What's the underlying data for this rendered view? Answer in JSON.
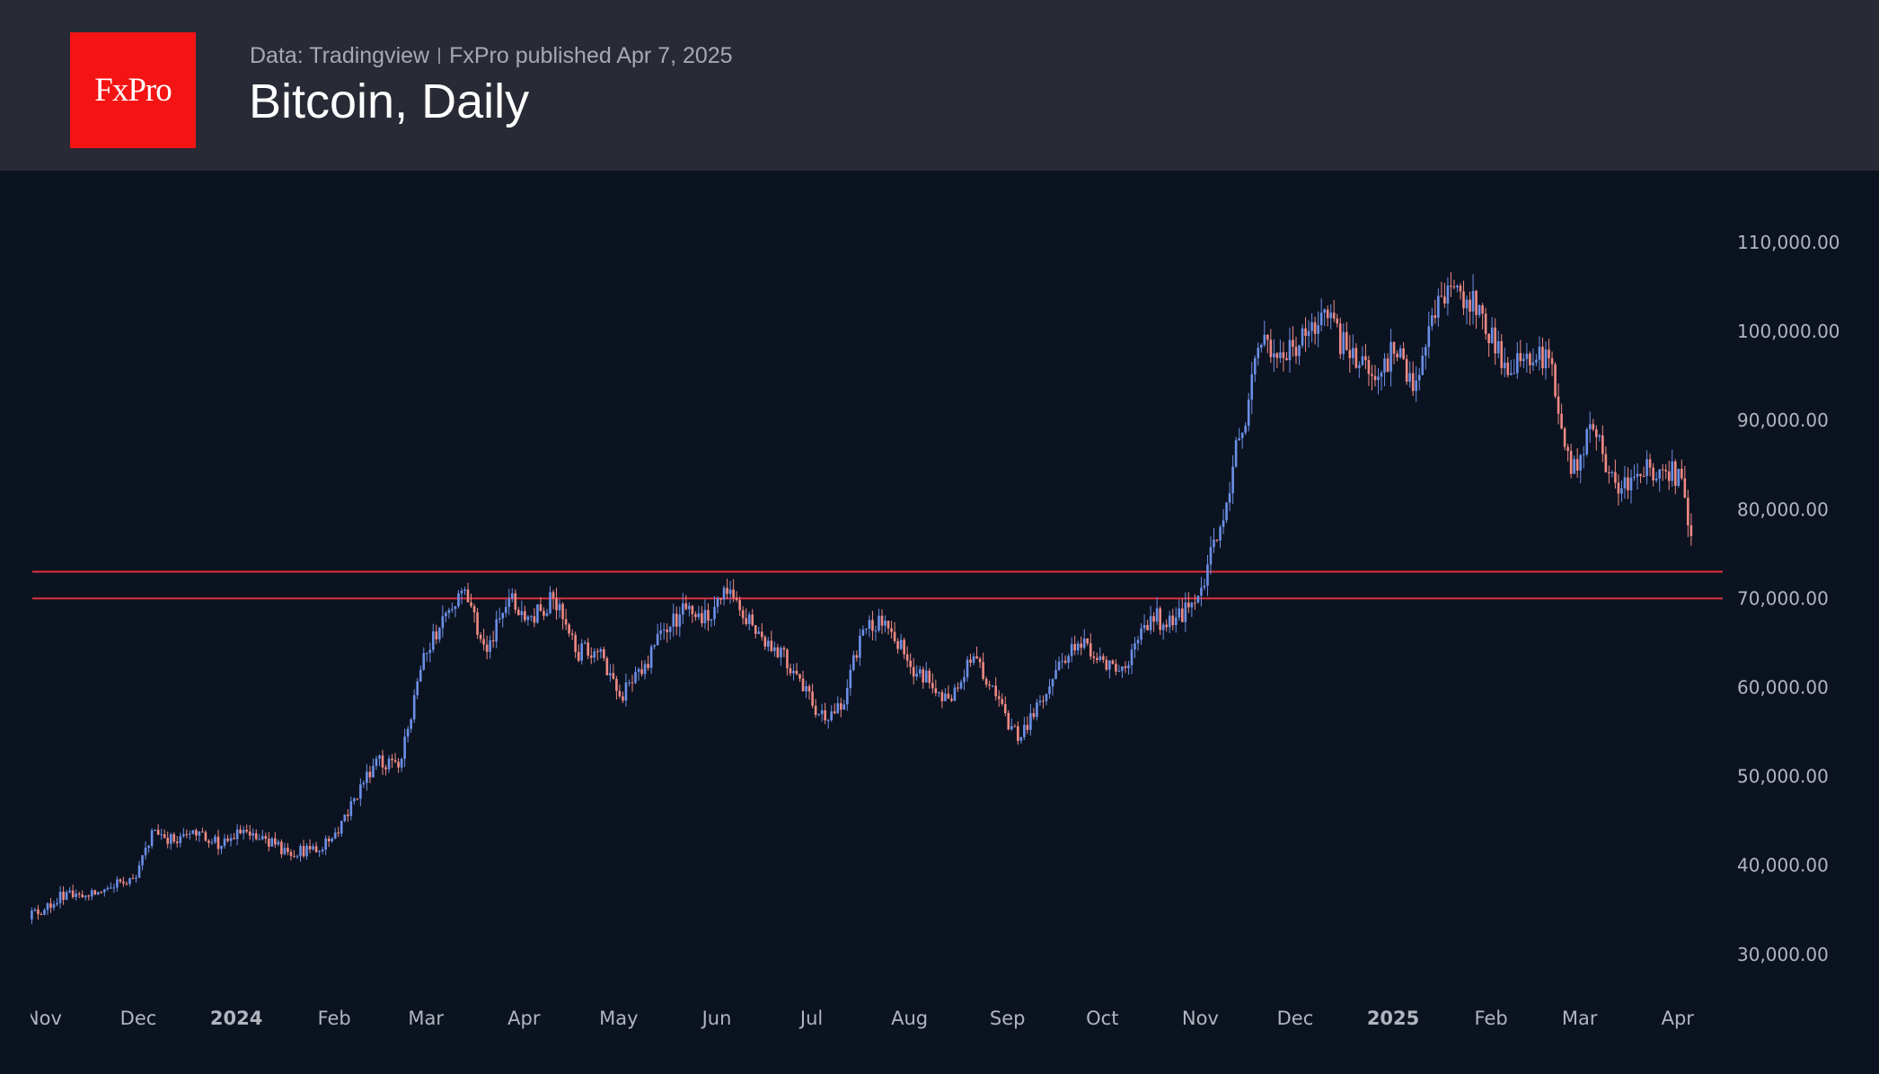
{
  "header": {
    "logo_text": "FxPro",
    "source": "Data: Tradingview",
    "published": "FxPro published Apr 7, 2025",
    "title": "Bitcoin, Daily"
  },
  "chart_data": {
    "type": "candlestick",
    "title": "Bitcoin, Daily",
    "ylabel": "",
    "xlabel": "",
    "ylim": [
      26000,
      116000
    ],
    "y_ticks": [
      "110,000.00",
      "100,000.00",
      "90,000.00",
      "80,000.00",
      "70,000.00",
      "60,000.00",
      "50,000.00",
      "40,000.00",
      "30,000.00"
    ],
    "y_tick_values": [
      110000,
      100000,
      90000,
      80000,
      70000,
      60000,
      50000,
      40000,
      30000
    ],
    "x_ticks": [
      {
        "label": "Nov",
        "date": "2023-11-01",
        "bold": false
      },
      {
        "label": "Dec",
        "date": "2023-12-01",
        "bold": false
      },
      {
        "label": "2024",
        "date": "2024-01-01",
        "bold": true
      },
      {
        "label": "Feb",
        "date": "2024-02-01",
        "bold": false
      },
      {
        "label": "Mar",
        "date": "2024-03-01",
        "bold": false
      },
      {
        "label": "Apr",
        "date": "2024-04-01",
        "bold": false
      },
      {
        "label": "May",
        "date": "2024-05-01",
        "bold": false
      },
      {
        "label": "Jun",
        "date": "2024-06-01",
        "bold": false
      },
      {
        "label": "Jul",
        "date": "2024-07-01",
        "bold": false
      },
      {
        "label": "Aug",
        "date": "2024-08-01",
        "bold": false
      },
      {
        "label": "Sep",
        "date": "2024-09-01",
        "bold": false
      },
      {
        "label": "Oct",
        "date": "2024-10-01",
        "bold": false
      },
      {
        "label": "Nov",
        "date": "2024-11-01",
        "bold": false
      },
      {
        "label": "Dec",
        "date": "2024-12-01",
        "bold": false
      },
      {
        "label": "2025",
        "date": "2025-01-01",
        "bold": true
      },
      {
        "label": "Feb",
        "date": "2025-02-01",
        "bold": false
      },
      {
        "label": "Mar",
        "date": "2025-03-01",
        "bold": false
      },
      {
        "label": "Apr",
        "date": "2025-04-01",
        "bold": false
      }
    ],
    "horizontal_levels": [
      73000,
      70000
    ],
    "colors": {
      "up": "#6b8fe6",
      "down": "#f08a84",
      "level": "#e0303c",
      "background": "#0c1320"
    },
    "approx_weekly_closes": [
      [
        "2023-10-27",
        34300
      ],
      [
        "2023-11-03",
        35000
      ],
      [
        "2023-11-10",
        37000
      ],
      [
        "2023-11-17",
        36500
      ],
      [
        "2023-11-24",
        37500
      ],
      [
        "2023-12-01",
        38500
      ],
      [
        "2023-12-08",
        44000
      ],
      [
        "2023-12-15",
        42500
      ],
      [
        "2023-12-22",
        43800
      ],
      [
        "2023-12-29",
        42200
      ],
      [
        "2024-01-05",
        44000
      ],
      [
        "2024-01-12",
        43000
      ],
      [
        "2024-01-19",
        41500
      ],
      [
        "2024-01-26",
        41800
      ],
      [
        "2024-02-02",
        43000
      ],
      [
        "2024-02-09",
        47500
      ],
      [
        "2024-02-16",
        52000
      ],
      [
        "2024-02-23",
        51000
      ],
      [
        "2024-03-01",
        62000
      ],
      [
        "2024-03-08",
        68000
      ],
      [
        "2024-03-15",
        71000
      ],
      [
        "2024-03-22",
        64000
      ],
      [
        "2024-03-29",
        70000
      ],
      [
        "2024-04-05",
        68000
      ],
      [
        "2024-04-12",
        70000
      ],
      [
        "2024-04-19",
        64000
      ],
      [
        "2024-04-26",
        64000
      ],
      [
        "2024-05-03",
        59000
      ],
      [
        "2024-05-10",
        61500
      ],
      [
        "2024-05-17",
        66500
      ],
      [
        "2024-05-24",
        68800
      ],
      [
        "2024-05-31",
        67500
      ],
      [
        "2024-06-07",
        71000
      ],
      [
        "2024-06-14",
        67000
      ],
      [
        "2024-06-21",
        64500
      ],
      [
        "2024-06-28",
        61500
      ],
      [
        "2024-07-05",
        57000
      ],
      [
        "2024-07-12",
        57500
      ],
      [
        "2024-07-19",
        66500
      ],
      [
        "2024-07-26",
        67500
      ],
      [
        "2024-08-02",
        63000
      ],
      [
        "2024-08-09",
        60500
      ],
      [
        "2024-08-16",
        58500
      ],
      [
        "2024-08-23",
        63500
      ],
      [
        "2024-08-30",
        59000
      ],
      [
        "2024-09-06",
        54000
      ],
      [
        "2024-09-13",
        58500
      ],
      [
        "2024-09-20",
        63000
      ],
      [
        "2024-09-27",
        65500
      ],
      [
        "2024-10-04",
        62000
      ],
      [
        "2024-10-11",
        62500
      ],
      [
        "2024-10-18",
        68000
      ],
      [
        "2024-10-25",
        67000
      ],
      [
        "2024-11-01",
        69500
      ],
      [
        "2024-11-08",
        76500
      ],
      [
        "2024-11-15",
        88000
      ],
      [
        "2024-11-22",
        98500
      ],
      [
        "2024-11-29",
        97000
      ],
      [
        "2024-12-06",
        99500
      ],
      [
        "2024-12-13",
        101500
      ],
      [
        "2024-12-20",
        97000
      ],
      [
        "2024-12-27",
        95000
      ],
      [
        "2025-01-03",
        97500
      ],
      [
        "2025-01-10",
        94500
      ],
      [
        "2025-01-17",
        104000
      ],
      [
        "2025-01-24",
        104500
      ],
      [
        "2025-01-31",
        102000
      ],
      [
        "2025-02-07",
        96500
      ],
      [
        "2025-02-14",
        97500
      ],
      [
        "2025-02-21",
        97000
      ],
      [
        "2025-02-28",
        84000
      ],
      [
        "2025-03-07",
        89000
      ],
      [
        "2025-03-14",
        83000
      ],
      [
        "2025-03-21",
        84000
      ],
      [
        "2025-03-28",
        84500
      ],
      [
        "2025-04-04",
        83500
      ],
      [
        "2025-04-07",
        77000
      ]
    ]
  }
}
